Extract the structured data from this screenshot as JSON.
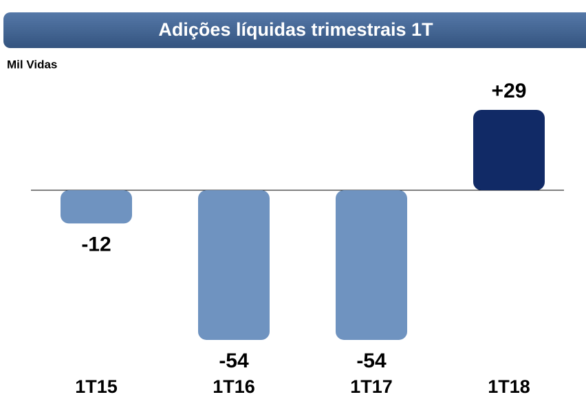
{
  "chart_data": {
    "type": "bar",
    "title": "Adições líquidas trimestrais 1T",
    "ylabel": "Mil Vidas",
    "categories": [
      "1T15",
      "1T16",
      "1T17",
      "1T18"
    ],
    "values": [
      -12,
      -54,
      -54,
      29
    ],
    "value_labels": [
      "-12",
      "-54",
      "-54",
      "+29"
    ],
    "colors": [
      "#6f93c0",
      "#6f93c0",
      "#6f93c0",
      "#112a66"
    ]
  }
}
